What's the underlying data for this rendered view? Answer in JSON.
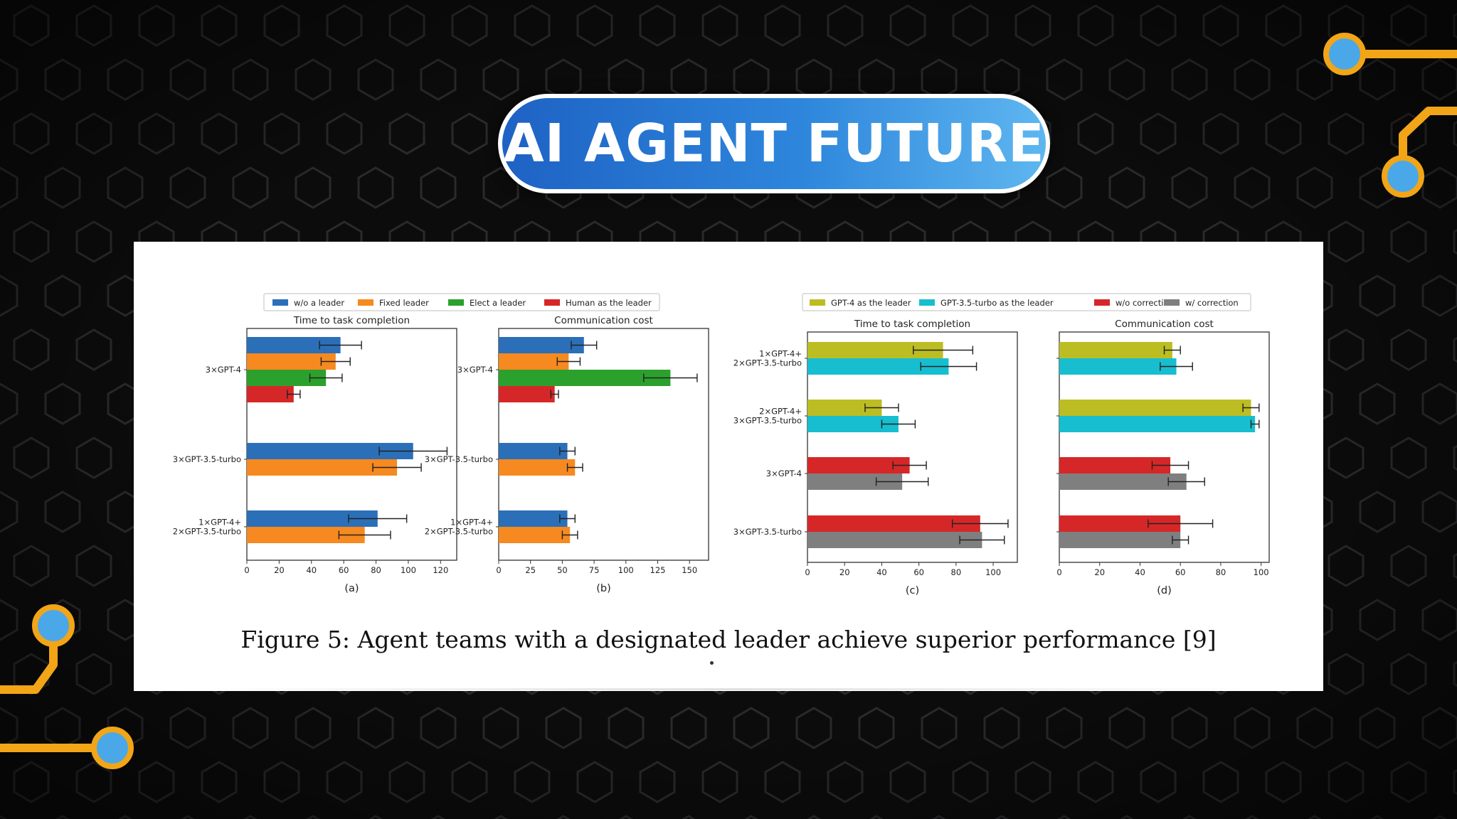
{
  "slide": {
    "title": "AI AGENT FUTURE",
    "caption": "Figure 5: Agent teams with a designated leader achieve superior performance [9]",
    "colors": {
      "pill_start": "#1e62c4",
      "pill_end": "#5eb6f0",
      "circuit_gold": "#f2a516",
      "node_blue": "#4aa8e8",
      "background": "#0b0b0c"
    }
  },
  "legends": {
    "left": [
      {
        "label": "w/o a leader",
        "color": "#2b6fb8"
      },
      {
        "label": "Fixed leader",
        "color": "#f6891f"
      },
      {
        "label": "Elect a leader",
        "color": "#2ca02c"
      },
      {
        "label": "Human as the leader",
        "color": "#d62728"
      }
    ],
    "right": [
      {
        "label": "GPT-4 as the leader",
        "color": "#bcbd22"
      },
      {
        "label": "GPT-3.5-turbo as the leader",
        "color": "#17becf"
      },
      {
        "label": "w/o correction",
        "color": "#d62728"
      },
      {
        "label": "w/ correction",
        "color": "#7f7f7f"
      }
    ]
  },
  "chart_data": [
    {
      "type": "bar",
      "orientation": "horizontal",
      "title": "Time to task completion",
      "label": "(a)",
      "categories": [
        "3×GPT-4",
        "3×GPT-3.5-turbo",
        "1×GPT-4+\n2×GPT-3.5-turbo"
      ],
      "xlim": [
        0,
        130
      ],
      "xticks": [
        0,
        20,
        40,
        60,
        80,
        100,
        120
      ],
      "series": [
        {
          "name": "w/o a leader",
          "color": "#2b6fb8",
          "values": [
            58,
            103,
            81
          ],
          "errors": [
            13,
            21,
            18
          ]
        },
        {
          "name": "Fixed leader",
          "color": "#f6891f",
          "values": [
            55,
            93,
            73
          ],
          "errors": [
            9,
            15,
            16
          ]
        },
        {
          "name": "Elect a leader",
          "color": "#2ca02c",
          "values": [
            49,
            null,
            null
          ],
          "errors": [
            10,
            null,
            null
          ]
        },
        {
          "name": "Human as the leader",
          "color": "#d62728",
          "values": [
            29,
            null,
            null
          ],
          "errors": [
            4,
            null,
            null
          ]
        }
      ]
    },
    {
      "type": "bar",
      "orientation": "horizontal",
      "title": "Communication cost",
      "label": "(b)",
      "categories": [
        "3×GPT-4",
        "3×GPT-3.5-turbo",
        "1×GPT-4+\n2×GPT-3.5-turbo"
      ],
      "xlim": [
        0,
        165
      ],
      "xticks": [
        0,
        25,
        50,
        75,
        100,
        125,
        150
      ],
      "series": [
        {
          "name": "w/o a leader",
          "color": "#2b6fb8",
          "values": [
            67,
            54,
            54
          ],
          "errors": [
            10,
            6,
            6
          ]
        },
        {
          "name": "Fixed leader",
          "color": "#f6891f",
          "values": [
            55,
            60,
            56
          ],
          "errors": [
            9,
            6,
            6
          ]
        },
        {
          "name": "Elect a leader",
          "color": "#2ca02c",
          "values": [
            135,
            null,
            null
          ],
          "errors": [
            21,
            null,
            null
          ]
        },
        {
          "name": "Human as the leader",
          "color": "#d62728",
          "values": [
            44,
            null,
            null
          ],
          "errors": [
            3,
            null,
            null
          ]
        }
      ]
    },
    {
      "type": "bar",
      "orientation": "horizontal",
      "title": "Time to task completion",
      "label": "(c)",
      "categories": [
        "1×GPT-4+\n2×GPT-3.5-turbo",
        "2×GPT-4+\n3×GPT-3.5-turbo",
        "3×GPT-4",
        "3×GPT-3.5-turbo"
      ],
      "xlim": [
        0,
        113
      ],
      "xticks": [
        0,
        20,
        40,
        60,
        80,
        100
      ],
      "groups": [
        [
          {
            "name": "GPT-4 as the leader",
            "color": "#bcbd22",
            "value": 73,
            "error": 16
          },
          {
            "name": "GPT-3.5-turbo as the leader",
            "color": "#17becf",
            "value": 76,
            "error": 15
          }
        ],
        [
          {
            "name": "GPT-4 as the leader",
            "color": "#bcbd22",
            "value": 40,
            "error": 9
          },
          {
            "name": "GPT-3.5-turbo as the leader",
            "color": "#17becf",
            "value": 49,
            "error": 9
          }
        ],
        [
          {
            "name": "w/o correction",
            "color": "#d62728",
            "value": 55,
            "error": 9
          },
          {
            "name": "w/ correction",
            "color": "#7f7f7f",
            "value": 51,
            "error": 14
          }
        ],
        [
          {
            "name": "w/o correction",
            "color": "#d62728",
            "value": 93,
            "error": 15
          },
          {
            "name": "w/ correction",
            "color": "#7f7f7f",
            "value": 94,
            "error": 12
          }
        ]
      ]
    },
    {
      "type": "bar",
      "orientation": "horizontal",
      "title": "Communication cost",
      "label": "(d)",
      "categories": [
        "1×GPT-4+\n2×GPT-3.5-turbo",
        "2×GPT-4+\n3×GPT-3.5-turbo",
        "3×GPT-4",
        "3×GPT-3.5-turbo"
      ],
      "xlim": [
        0,
        104
      ],
      "xticks": [
        0,
        20,
        40,
        60,
        80,
        100
      ],
      "groups": [
        [
          {
            "name": "GPT-4 as the leader",
            "color": "#bcbd22",
            "value": 56,
            "error": 4
          },
          {
            "name": "GPT-3.5-turbo as the leader",
            "color": "#17becf",
            "value": 58,
            "error": 8
          }
        ],
        [
          {
            "name": "GPT-4 as the leader",
            "color": "#bcbd22",
            "value": 95,
            "error": 4
          },
          {
            "name": "GPT-3.5-turbo as the leader",
            "color": "#17becf",
            "value": 97,
            "error": 2
          }
        ],
        [
          {
            "name": "w/o correction",
            "color": "#d62728",
            "value": 55,
            "error": 9
          },
          {
            "name": "w/ correction",
            "color": "#7f7f7f",
            "value": 63,
            "error": 9
          }
        ],
        [
          {
            "name": "w/o correction",
            "color": "#d62728",
            "value": 60,
            "error": 16
          },
          {
            "name": "w/ correction",
            "color": "#7f7f7f",
            "value": 60,
            "error": 4
          }
        ]
      ]
    }
  ]
}
